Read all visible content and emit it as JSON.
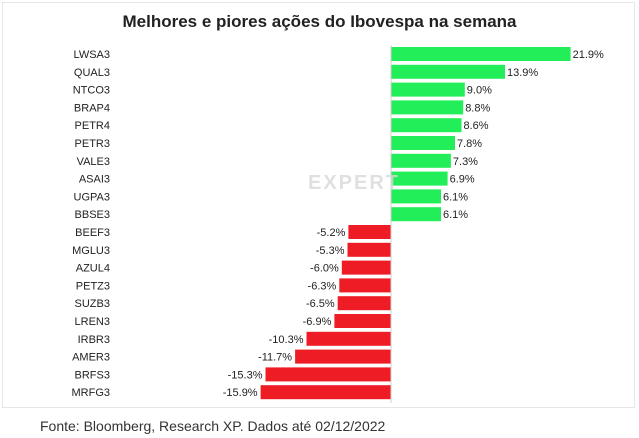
{
  "chart_data": {
    "type": "bar",
    "orientation": "horizontal",
    "title": "Melhores e piores ações do Ibovespa na semana",
    "categories": [
      "LWSA3",
      "QUAL3",
      "NTCO3",
      "BRAP4",
      "PETR4",
      "PETR3",
      "VALE3",
      "ASAI3",
      "UGPA3",
      "BBSE3",
      "BEEF3",
      "MGLU3",
      "AZUL4",
      "PETZ3",
      "SUZB3",
      "LREN3",
      "IRBR3",
      "AMER3",
      "BRFS3",
      "MRFG3"
    ],
    "values": [
      21.9,
      13.9,
      9.0,
      8.8,
      8.6,
      7.8,
      7.3,
      6.9,
      6.1,
      6.1,
      -5.2,
      -5.3,
      -6.0,
      -6.3,
      -6.5,
      -6.9,
      -10.3,
      -11.7,
      -15.3,
      -15.9
    ],
    "data_labels": [
      "21.9%",
      "13.9%",
      "9.0%",
      "8.8%",
      "8.6%",
      "7.8%",
      "7.3%",
      "6.9%",
      "6.1%",
      "6.1%",
      "-5.2%",
      "-5.3%",
      "-6.0%",
      "-6.3%",
      "-6.5%",
      "-6.9%",
      "-10.3%",
      "-11.7%",
      "-15.3%",
      "-15.9%"
    ],
    "colors": {
      "positive": "#22ee5a",
      "negative": "#ee1c24"
    },
    "grid": false,
    "legend": "none"
  },
  "watermark": "EXPERT",
  "source": "Fonte: Bloomberg, Research XP. Dados até 02/12/2022"
}
